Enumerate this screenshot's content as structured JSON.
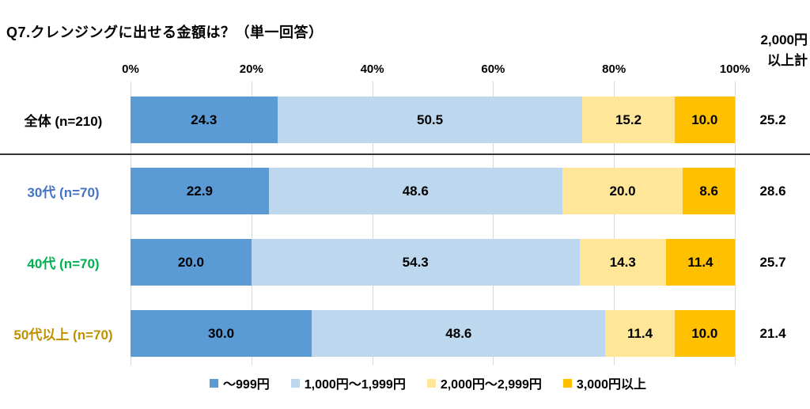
{
  "title": "Q7.クレンジングに出せる金額は？（単一回答）",
  "total_header": "2,000円\n以上計",
  "colors": {
    "series_1": "#5B9BD5",
    "series_2": "#BDD7EE",
    "series_3": "#FFE699",
    "series_4": "#FFC000",
    "gridline": "#D9D9D9",
    "separator_line": "#343434",
    "label_overall": "#000000",
    "label_30s": "#4472C4",
    "label_40s": "#00B050",
    "label_50s": "#BF9000"
  },
  "chart_data": {
    "type": "bar",
    "stacked": true,
    "orientation": "horizontal",
    "title": "Q7.クレンジングに出せる金額は？（単一回答）",
    "categories": [
      "全体 (n=210)",
      "30代 (n=70)",
      "40代 (n=70)",
      "50代以上 (n=70)"
    ],
    "category_colors": [
      "#000000",
      "#4472C4",
      "#00B050",
      "#BF9000"
    ],
    "series": [
      {
        "name": "～999円",
        "color": "#5B9BD5",
        "values": [
          "24.3",
          "22.9",
          "20.0",
          "30.0"
        ]
      },
      {
        "name": "1,000円～1,999円",
        "color": "#BDD7EE",
        "values": [
          "50.5",
          "48.6",
          "54.3",
          "48.6"
        ]
      },
      {
        "name": "2,000円～2,999円",
        "color": "#FFE699",
        "values": [
          "15.2",
          "20.0",
          "14.3",
          "11.4"
        ]
      },
      {
        "name": "3,000円以上",
        "color": "#FFC000",
        "values": [
          "10.0",
          "8.6",
          "11.4",
          "10.0"
        ]
      }
    ],
    "totals_column": {
      "header": "2,000円以上計",
      "values": [
        "25.2",
        "28.6",
        "25.7",
        "21.4"
      ]
    },
    "x_axis": {
      "ticks": [
        "0%",
        "20%",
        "40%",
        "60%",
        "80%",
        "100%"
      ],
      "range": [
        0,
        100
      ],
      "grid": true
    },
    "legend_position": "bottom"
  }
}
